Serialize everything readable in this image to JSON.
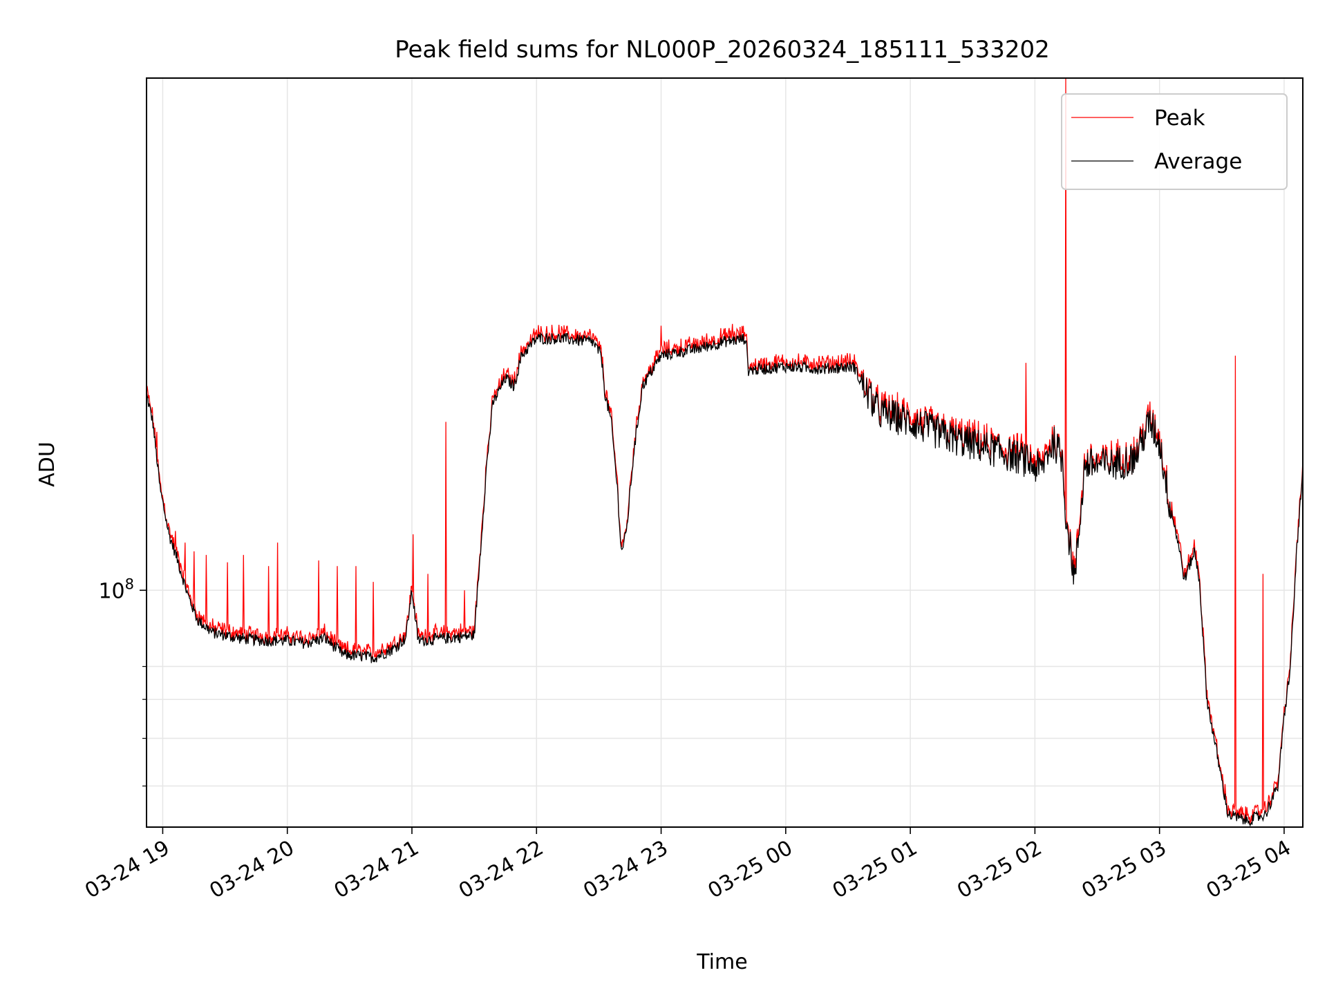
{
  "chart_data": {
    "type": "line",
    "title": "Peak field sums for NL000P_20260324_185111_533202",
    "xlabel": "Time",
    "ylabel": "ADU",
    "yscale": "log",
    "x_unit": "hours since 2026-03-24 00:00",
    "xlim": [
      18.87,
      28.15
    ],
    "ylim": [
      33000000,
      1100000000
    ],
    "ytick_major": {
      "value": 100000000,
      "label": "10^8"
    },
    "ytick_minor": [
      40000000,
      50000000,
      60000000,
      70000000
    ],
    "xticks": [
      {
        "value": 19,
        "label": "03-24 19"
      },
      {
        "value": 20,
        "label": "03-24 20"
      },
      {
        "value": 21,
        "label": "03-24 21"
      },
      {
        "value": 22,
        "label": "03-24 22"
      },
      {
        "value": 23,
        "label": "03-24 23"
      },
      {
        "value": 24,
        "label": "03-25 00"
      },
      {
        "value": 25,
        "label": "03-25 01"
      },
      {
        "value": 26,
        "label": "03-25 02"
      },
      {
        "value": 27,
        "label": "03-25 03"
      },
      {
        "value": 28,
        "label": "03-25 04"
      }
    ],
    "grid": true,
    "legend": "top-right",
    "series": [
      {
        "name": "Peak",
        "color": "#ff0000"
      },
      {
        "name": "Average",
        "color": "#000000"
      }
    ],
    "average_profile": [
      [
        18.87,
        250000000
      ],
      [
        18.92,
        220000000
      ],
      [
        18.98,
        160000000
      ],
      [
        19.05,
        130000000
      ],
      [
        19.12,
        115000000
      ],
      [
        19.2,
        98000000
      ],
      [
        19.28,
        87000000
      ],
      [
        19.4,
        82000000
      ],
      [
        19.6,
        80000000
      ],
      [
        19.8,
        79000000
      ],
      [
        20.0,
        79000000
      ],
      [
        20.15,
        78000000
      ],
      [
        20.3,
        80000000
      ],
      [
        20.45,
        74000000
      ],
      [
        20.7,
        73000000
      ],
      [
        20.85,
        76000000
      ],
      [
        20.95,
        80000000
      ],
      [
        21.0,
        100000000
      ],
      [
        21.05,
        79000000
      ],
      [
        21.3,
        80000000
      ],
      [
        21.5,
        81000000
      ],
      [
        21.55,
        120000000
      ],
      [
        21.6,
        180000000
      ],
      [
        21.65,
        240000000
      ],
      [
        21.75,
        270000000
      ],
      [
        21.82,
        260000000
      ],
      [
        21.88,
        300000000
      ],
      [
        22.0,
        325000000
      ],
      [
        22.2,
        325000000
      ],
      [
        22.45,
        320000000
      ],
      [
        22.52,
        300000000
      ],
      [
        22.55,
        250000000
      ],
      [
        22.6,
        220000000
      ],
      [
        22.65,
        160000000
      ],
      [
        22.68,
        120000000
      ],
      [
        22.72,
        130000000
      ],
      [
        22.78,
        190000000
      ],
      [
        22.85,
        260000000
      ],
      [
        23.0,
        300000000
      ],
      [
        23.15,
        305000000
      ],
      [
        23.3,
        310000000
      ],
      [
        23.5,
        320000000
      ],
      [
        23.68,
        325000000
      ],
      [
        23.7,
        280000000
      ],
      [
        24.0,
        285000000
      ],
      [
        24.3,
        282000000
      ],
      [
        24.55,
        285000000
      ],
      [
        24.6,
        265000000
      ],
      [
        24.75,
        230000000
      ],
      [
        25.0,
        220000000
      ],
      [
        25.3,
        205000000
      ],
      [
        25.6,
        195000000
      ],
      [
        25.9,
        185000000
      ],
      [
        26.05,
        175000000
      ],
      [
        26.1,
        190000000
      ],
      [
        26.15,
        200000000
      ],
      [
        26.22,
        185000000
      ],
      [
        26.25,
        140000000
      ],
      [
        26.32,
        105000000
      ],
      [
        26.4,
        180000000
      ],
      [
        26.6,
        180000000
      ],
      [
        26.8,
        185000000
      ],
      [
        26.92,
        220000000
      ],
      [
        27.0,
        200000000
      ],
      [
        27.08,
        150000000
      ],
      [
        27.15,
        125000000
      ],
      [
        27.2,
        105000000
      ],
      [
        27.28,
        120000000
      ],
      [
        27.32,
        105000000
      ],
      [
        27.38,
        60000000
      ],
      [
        27.42,
        53000000
      ],
      [
        27.5,
        41000000
      ],
      [
        27.55,
        35000000
      ],
      [
        27.7,
        34000000
      ],
      [
        27.85,
        35000000
      ],
      [
        27.95,
        40000000
      ],
      [
        28.0,
        55000000
      ],
      [
        28.05,
        70000000
      ],
      [
        28.08,
        95000000
      ],
      [
        28.1,
        120000000
      ],
      [
        28.13,
        150000000
      ],
      [
        28.15,
        175000000
      ]
    ],
    "peak_spikes": [
      [
        18.95,
        210000000
      ],
      [
        19.1,
        132000000
      ],
      [
        19.18,
        125000000
      ],
      [
        19.25,
        120000000
      ],
      [
        19.35,
        118000000
      ],
      [
        19.52,
        114000000
      ],
      [
        19.65,
        118000000
      ],
      [
        19.85,
        112000000
      ],
      [
        19.92,
        125000000
      ],
      [
        20.25,
        115000000
      ],
      [
        20.4,
        112000000
      ],
      [
        20.55,
        112000000
      ],
      [
        20.69,
        104000000
      ],
      [
        21.01,
        130000000
      ],
      [
        21.13,
        108000000
      ],
      [
        21.27,
        220000000
      ],
      [
        21.42,
        100000000
      ],
      [
        22.05,
        330000000
      ],
      [
        23.0,
        345000000
      ],
      [
        23.57,
        348000000
      ],
      [
        25.93,
        290000000
      ],
      [
        26.25,
        1100000000
      ],
      [
        27.61,
        300000000
      ],
      [
        27.83,
        108000000
      ],
      [
        28.12,
        140000000
      ]
    ]
  }
}
